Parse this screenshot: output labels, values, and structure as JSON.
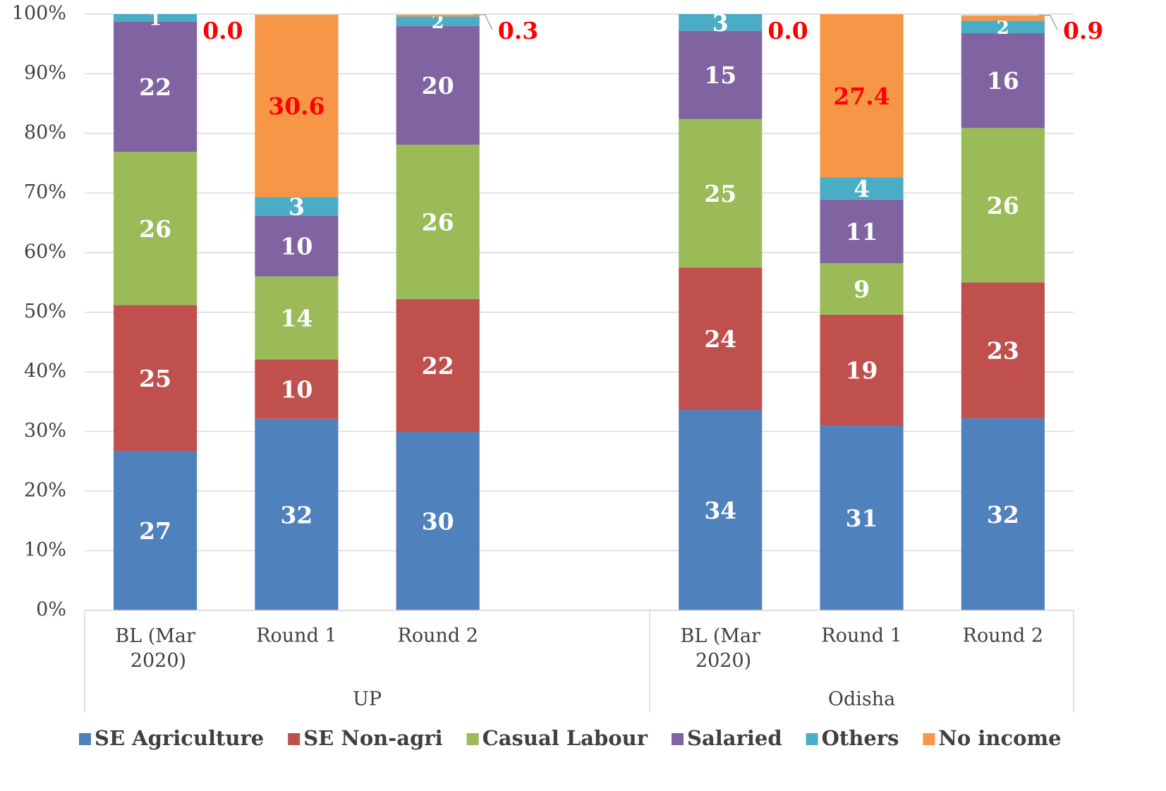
{
  "chart_data": {
    "type": "bar",
    "stacked": true,
    "categories": [
      "BL (Mar 2020)",
      "Round 1",
      "Round 2",
      null,
      "BL (Mar 2020)",
      "Round 1",
      "Round 2"
    ],
    "groups": [
      {
        "label": "UP",
        "count": 4
      },
      {
        "label": "Odisha",
        "count": 3
      }
    ],
    "series": [
      {
        "name": "SE Agriculture",
        "color": "#4f81bd",
        "label_color": "#ffffff",
        "values": [
          26.7,
          32.1,
          29.9,
          null,
          33.6,
          31.0,
          32.2
        ],
        "value_labels": [
          "27",
          "32",
          "30",
          null,
          "34",
          "31",
          "32"
        ]
      },
      {
        "name": "SE Non-agri",
        "color": "#c0504d",
        "label_color": "#ffffff",
        "values": [
          24.5,
          10.0,
          22.3,
          null,
          23.9,
          18.6,
          22.8
        ],
        "value_labels": [
          "25",
          "10",
          "22",
          null,
          "24",
          "19",
          "23"
        ]
      },
      {
        "name": "Casual Labour",
        "color": "#9bbb59",
        "label_color": "#ffffff",
        "values": [
          25.7,
          13.9,
          25.9,
          null,
          24.9,
          8.6,
          25.9
        ],
        "value_labels": [
          "26",
          "14",
          "26",
          null,
          "25",
          "9",
          "26"
        ]
      },
      {
        "name": "Salaried",
        "color": "#8064a2",
        "label_color": "#ffffff",
        "values": [
          21.8,
          10.2,
          19.9,
          null,
          14.8,
          10.7,
          15.9
        ],
        "value_labels": [
          "22",
          "10",
          "20",
          null,
          "15",
          "11",
          "16"
        ]
      },
      {
        "name": "Others",
        "color": "#4bacc6",
        "label_color": "#ffffff",
        "values": [
          1.3,
          3.1,
          1.6,
          null,
          2.8,
          3.7,
          2.1
        ],
        "value_labels": [
          "1",
          "3",
          "2",
          null,
          "3",
          "4",
          "2"
        ]
      },
      {
        "name": "No income",
        "color": "#f79646",
        "label_color": "#ff0000",
        "values": [
          0,
          30.6,
          0.3,
          null,
          0,
          27.4,
          0.9
        ],
        "value_labels": [
          "0.0",
          "30.6",
          "0.3",
          null,
          "0.0",
          "27.4",
          "0.9"
        ]
      }
    ],
    "ylim": [
      0,
      100
    ],
    "yticks": [
      {
        "value": 0,
        "label": "0%"
      },
      {
        "value": 10,
        "label": "10%"
      },
      {
        "value": 20,
        "label": "20%"
      },
      {
        "value": 30,
        "label": "30%"
      },
      {
        "value": 40,
        "label": "40%"
      },
      {
        "value": 50,
        "label": "50%"
      },
      {
        "value": 60,
        "label": "60%"
      },
      {
        "value": 70,
        "label": "70%"
      },
      {
        "value": 80,
        "label": "80%"
      },
      {
        "value": 90,
        "label": "90%"
      },
      {
        "value": 100,
        "label": "100%"
      }
    ],
    "grid": true,
    "legend": "bottom"
  }
}
